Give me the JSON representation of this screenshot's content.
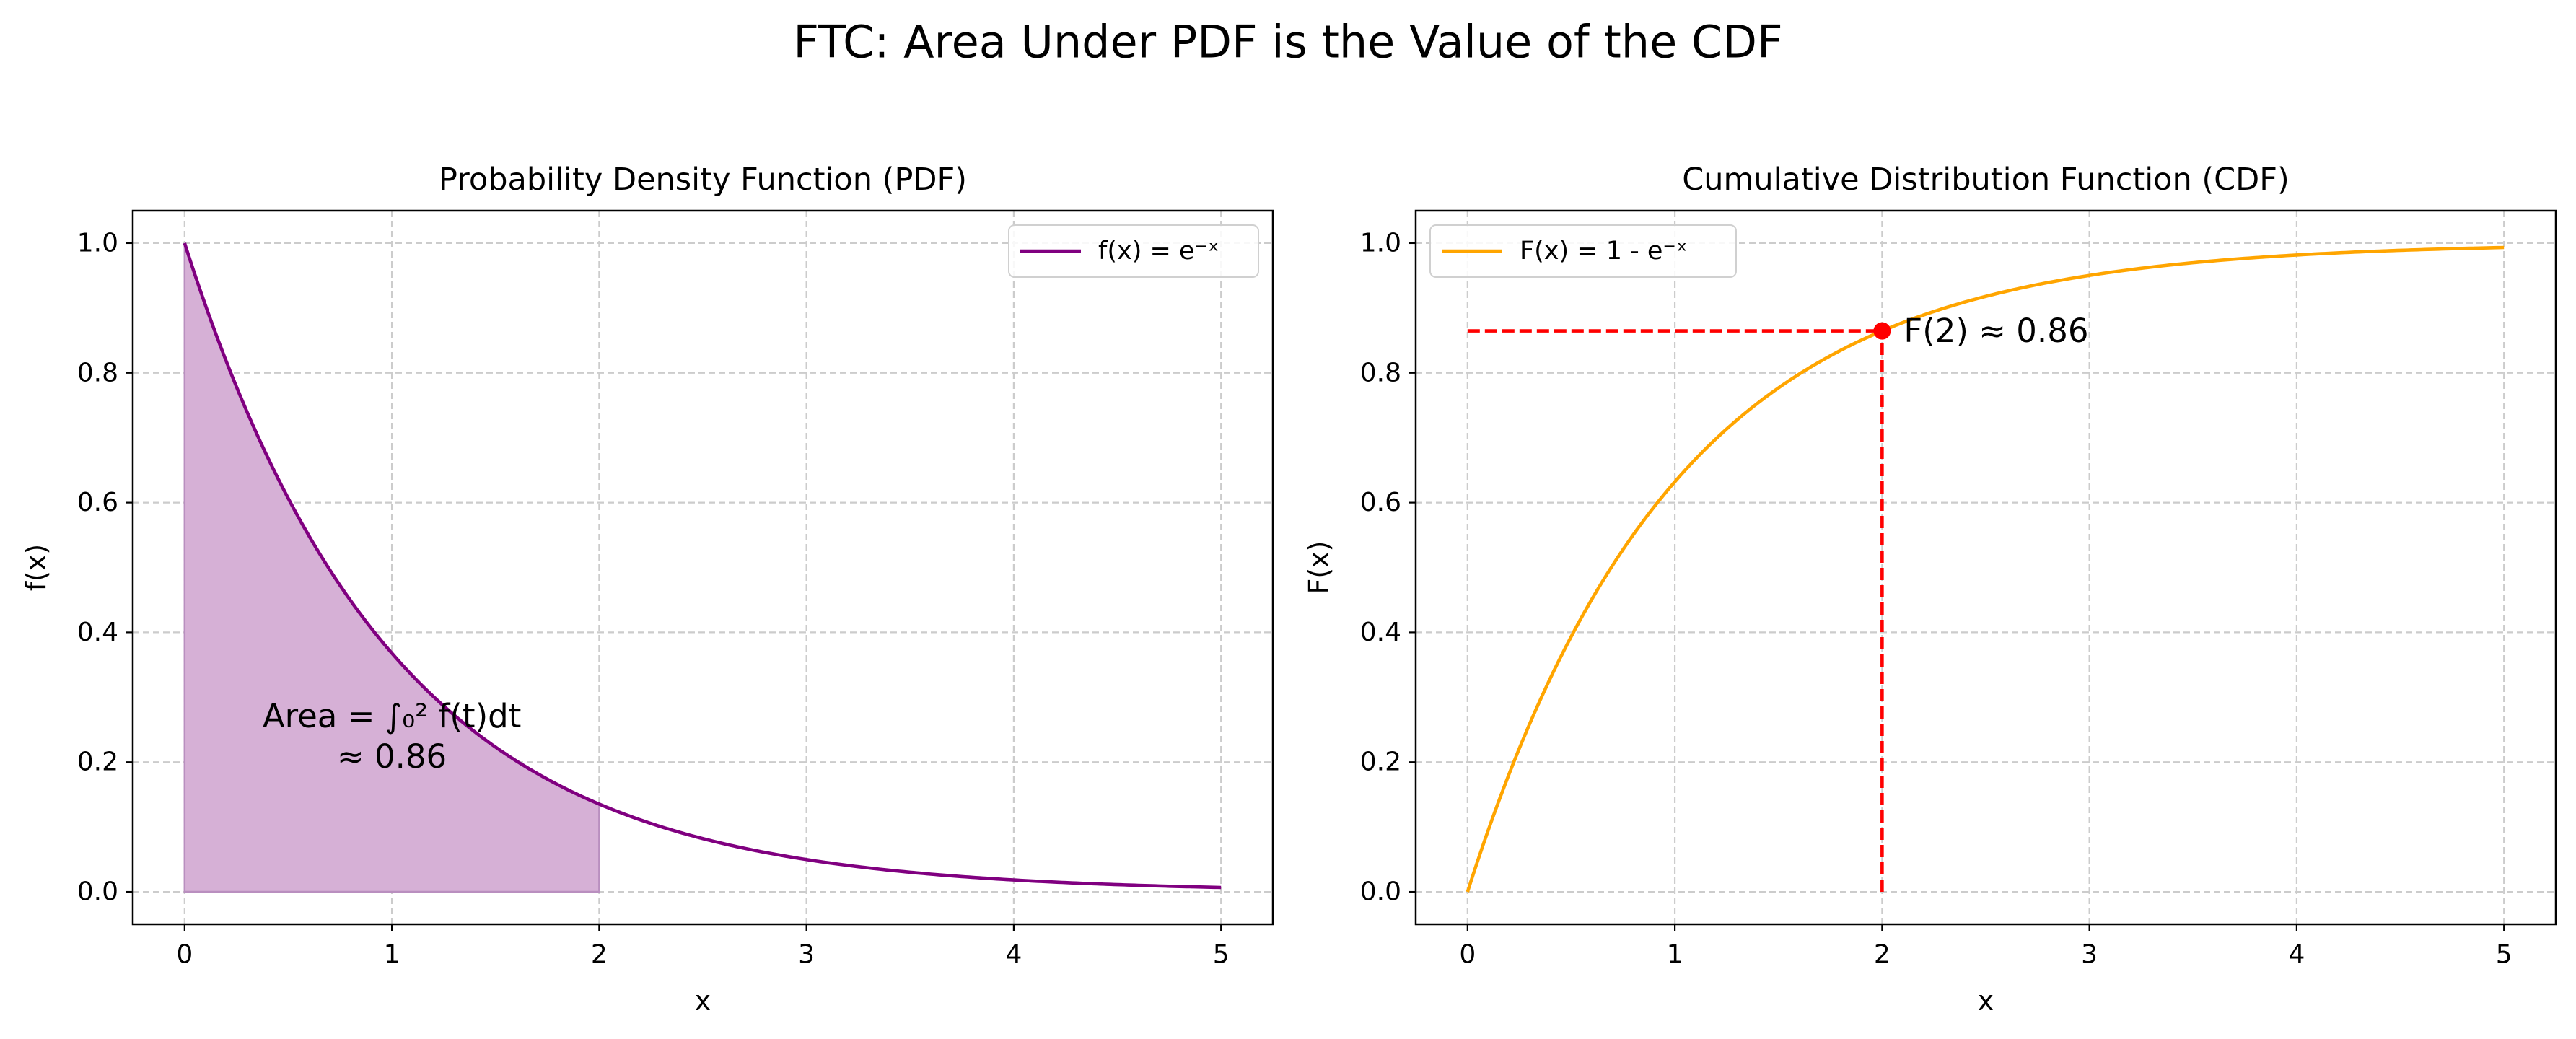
{
  "suptitle": "FTC: Area Under PDF is the Value of the CDF",
  "colors": {
    "pdf": "#800080",
    "pdf_fill": "#d6b0d6",
    "cdf": "#ffa500",
    "marker": "#ff0000",
    "grid": "#cccccc"
  },
  "chart_data": [
    {
      "type": "line",
      "title": "Probability Density Function (PDF)",
      "xlabel": "x",
      "ylabel": "f(x)",
      "xlim": [
        -0.25,
        5.25
      ],
      "ylim": [
        -0.05,
        1.05
      ],
      "xticks": [
        "0",
        "1",
        "2",
        "3",
        "4",
        "5"
      ],
      "yticks": [
        "0.0",
        "0.2",
        "0.4",
        "0.6",
        "0.8",
        "1.0"
      ],
      "grid": true,
      "legend_position": "upper right",
      "series": [
        {
          "name": "f(x) = e⁻ˣ",
          "color": "#800080",
          "x": [
            0,
            0.25,
            0.5,
            0.75,
            1,
            1.25,
            1.5,
            1.75,
            2,
            2.25,
            2.5,
            2.75,
            3,
            3.25,
            3.5,
            3.75,
            4,
            4.25,
            4.5,
            4.75,
            5
          ],
          "y": [
            1.0,
            0.779,
            0.607,
            0.472,
            0.368,
            0.287,
            0.223,
            0.174,
            0.135,
            0.105,
            0.082,
            0.064,
            0.05,
            0.039,
            0.03,
            0.024,
            0.018,
            0.014,
            0.011,
            0.009,
            0.007
          ]
        }
      ],
      "shaded_area": {
        "x_from": 0,
        "x_to": 2
      },
      "annotation": {
        "line1": "Area = ∫₀² f(t)dt",
        "line2": "≈ 0.86",
        "x": 1.0,
        "y": 0.24
      }
    },
    {
      "type": "line",
      "title": "Cumulative Distribution Function (CDF)",
      "xlabel": "x",
      "ylabel": "F(x)",
      "xlim": [
        -0.25,
        5.25
      ],
      "ylim": [
        -0.05,
        1.05
      ],
      "xticks": [
        "0",
        "1",
        "2",
        "3",
        "4",
        "5"
      ],
      "yticks": [
        "0.0",
        "0.2",
        "0.4",
        "0.6",
        "0.8",
        "1.0"
      ],
      "grid": true,
      "legend_position": "upper left",
      "series": [
        {
          "name": "F(x) = 1 - e⁻ˣ",
          "color": "#ffa500",
          "x": [
            0,
            0.25,
            0.5,
            0.75,
            1,
            1.25,
            1.5,
            1.75,
            2,
            2.25,
            2.5,
            2.75,
            3,
            3.25,
            3.5,
            3.75,
            4,
            4.25,
            4.5,
            4.75,
            5
          ],
          "y": [
            0.0,
            0.221,
            0.393,
            0.528,
            0.632,
            0.713,
            0.777,
            0.826,
            0.865,
            0.895,
            0.918,
            0.936,
            0.95,
            0.961,
            0.97,
            0.976,
            0.982,
            0.986,
            0.989,
            0.991,
            0.993
          ]
        }
      ],
      "marker_point": {
        "x": 2,
        "y": 0.8647,
        "label": "F(2) ≈ 0.86"
      }
    }
  ]
}
